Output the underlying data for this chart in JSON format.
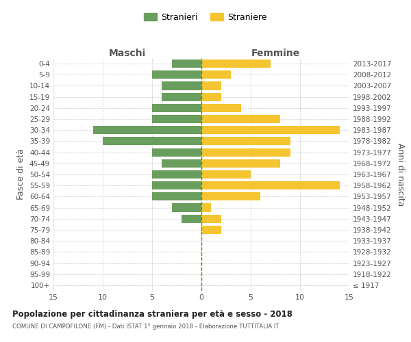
{
  "age_groups": [
    "100+",
    "95-99",
    "90-94",
    "85-89",
    "80-84",
    "75-79",
    "70-74",
    "65-69",
    "60-64",
    "55-59",
    "50-54",
    "45-49",
    "40-44",
    "35-39",
    "30-34",
    "25-29",
    "20-24",
    "15-19",
    "10-14",
    "5-9",
    "0-4"
  ],
  "birth_years": [
    "≤ 1917",
    "1918-1922",
    "1923-1927",
    "1928-1932",
    "1933-1937",
    "1938-1942",
    "1943-1947",
    "1948-1952",
    "1953-1957",
    "1958-1962",
    "1963-1967",
    "1968-1972",
    "1973-1977",
    "1978-1982",
    "1983-1987",
    "1988-1992",
    "1993-1997",
    "1998-2002",
    "2003-2007",
    "2008-2012",
    "2013-2017"
  ],
  "males": [
    0,
    0,
    0,
    0,
    0,
    0,
    2,
    3,
    5,
    5,
    5,
    4,
    5,
    10,
    11,
    5,
    5,
    4,
    4,
    5,
    3
  ],
  "females": [
    0,
    0,
    0,
    0,
    0,
    2,
    2,
    1,
    6,
    14,
    5,
    8,
    9,
    9,
    14,
    8,
    4,
    2,
    2,
    3,
    7
  ],
  "male_color": "#6a9e5e",
  "female_color": "#f5c431",
  "bar_height": 0.75,
  "xlim": 15,
  "title": "Popolazione per cittadinanza straniera per età e sesso - 2018",
  "subtitle": "COMUNE DI CAMPOFILONE (FM) - Dati ISTAT 1° gennaio 2018 - Elaborazione TUTTITALIA.IT",
  "ylabel_left": "Fasce di età",
  "ylabel_right": "Anni di nascita",
  "header_male": "Maschi",
  "header_female": "Femmine",
  "legend_male": "Stranieri",
  "legend_female": "Straniere",
  "background_color": "#ffffff",
  "grid_color": "#cccccc",
  "text_color": "#555555"
}
